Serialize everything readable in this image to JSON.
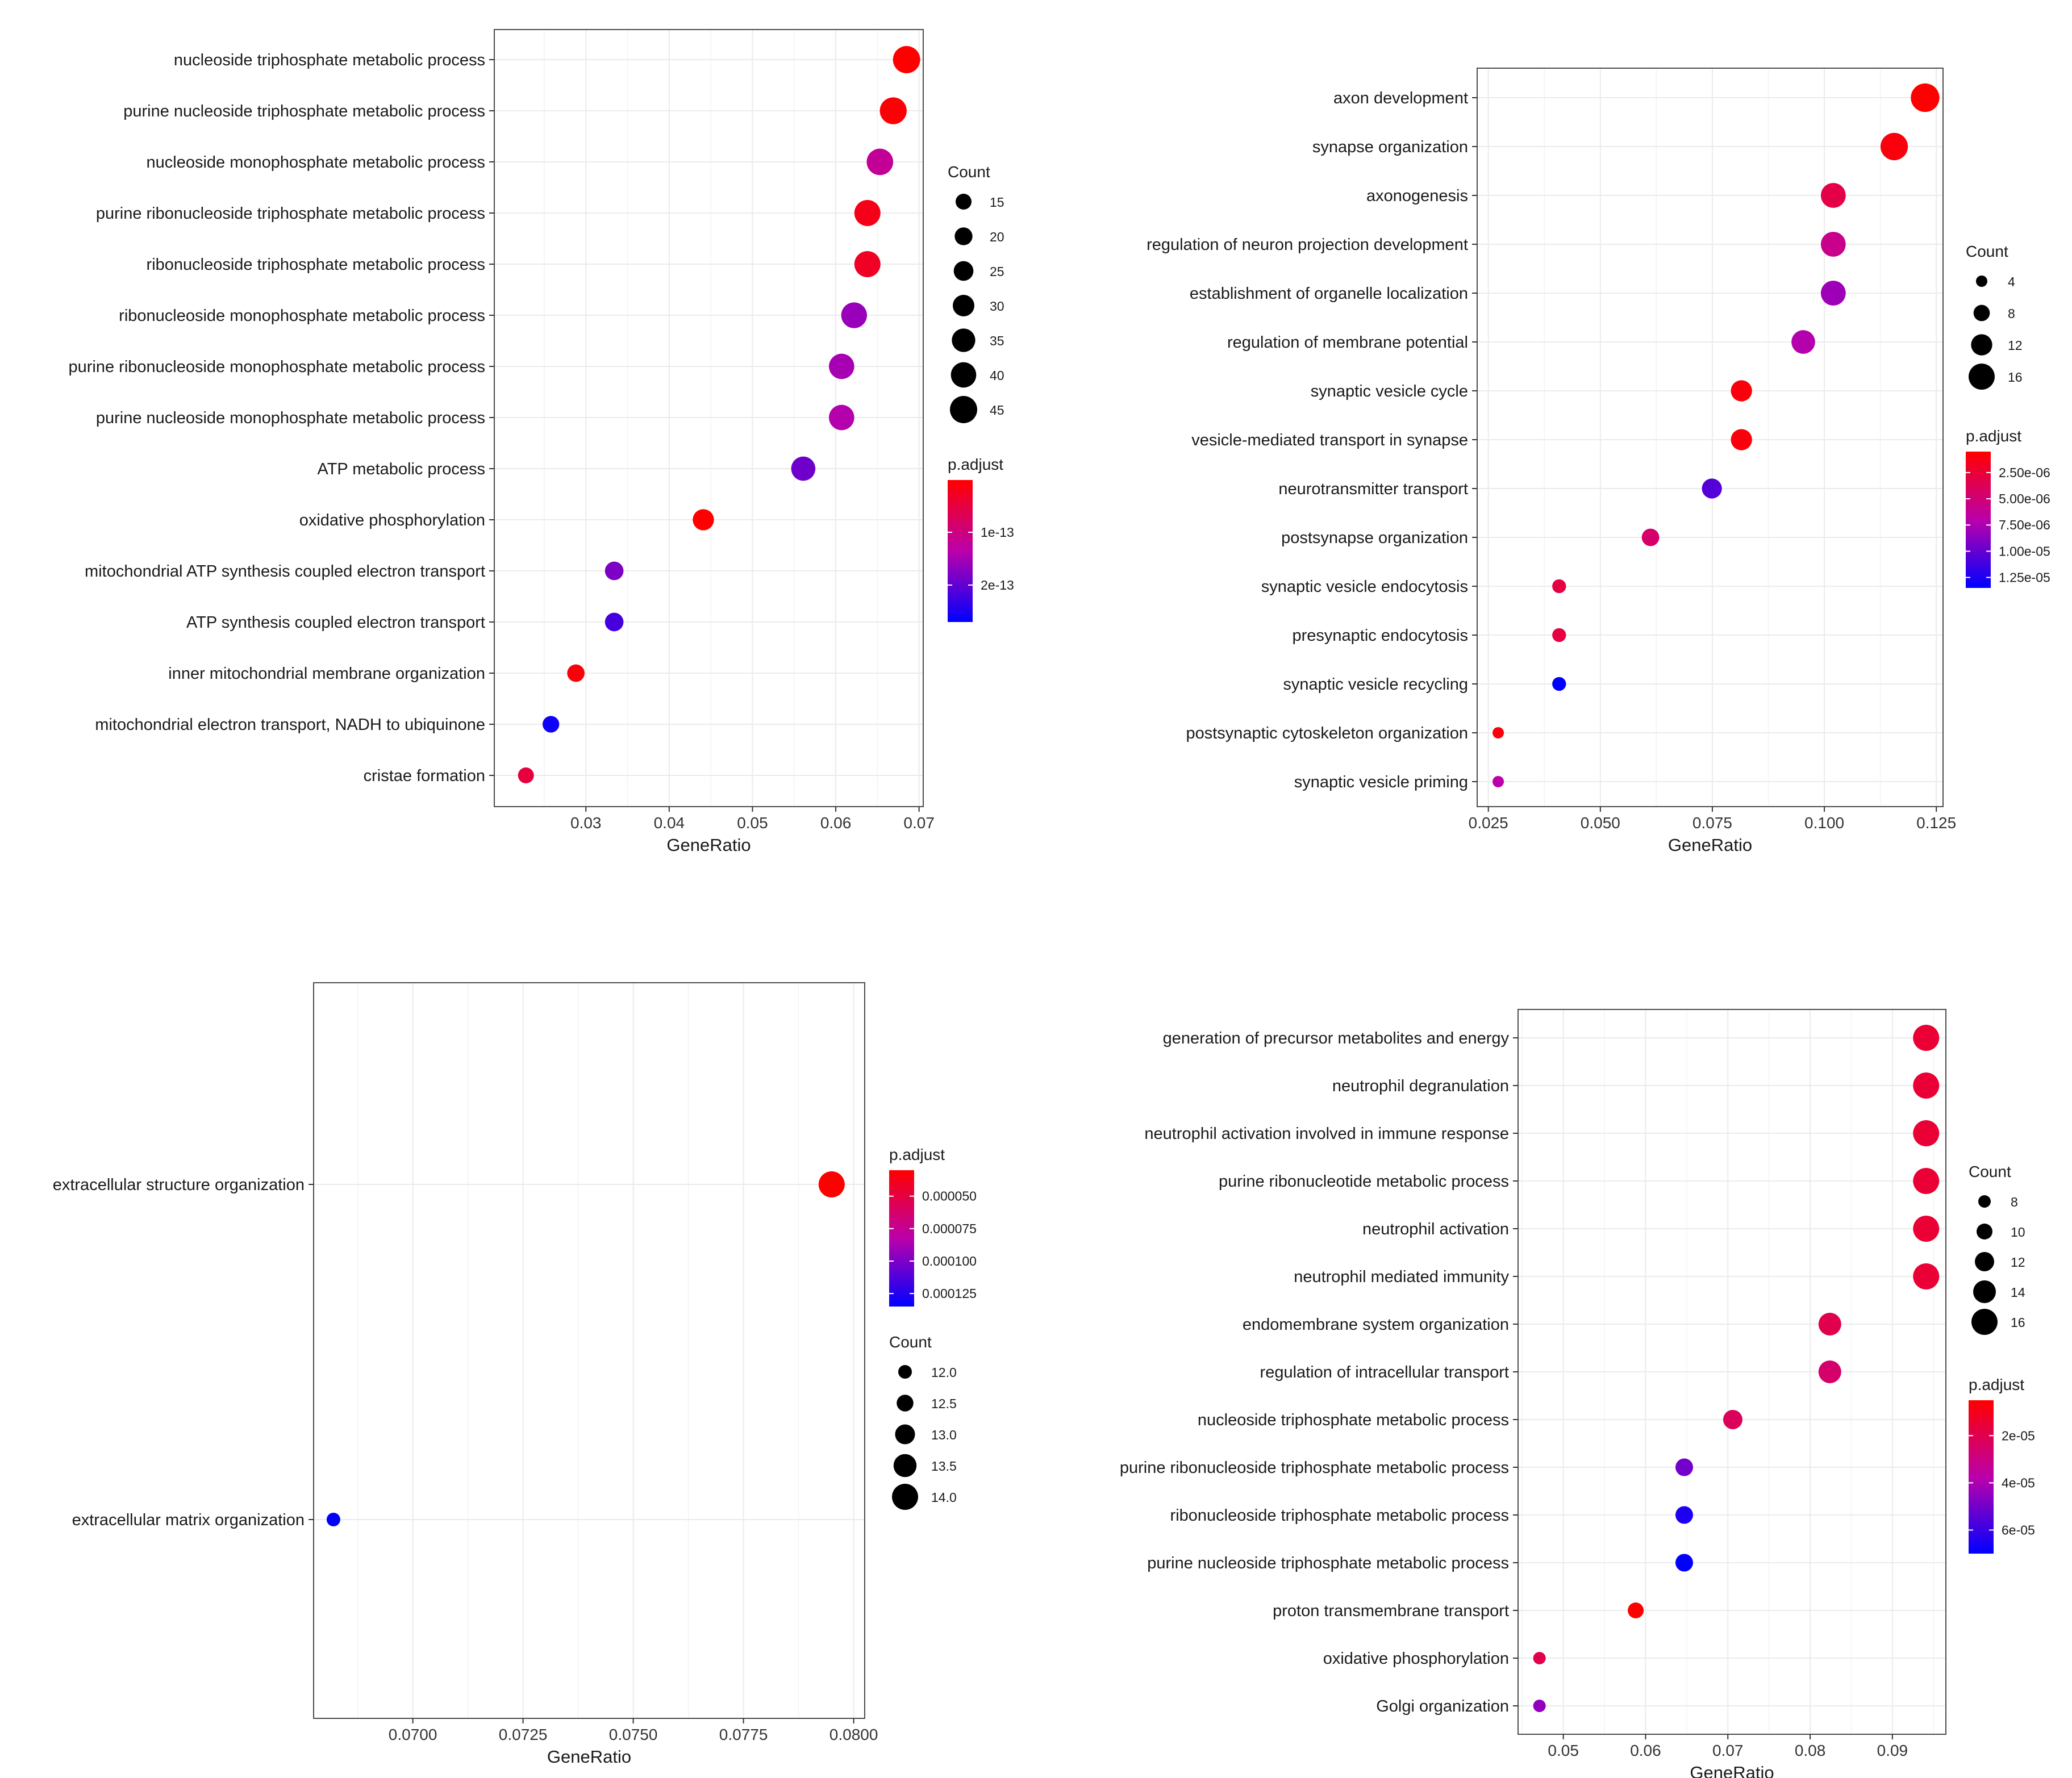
{
  "colors": {
    "low_padj": "#ff0000",
    "high_padj": "#0000ff",
    "grid": "#ebebeb",
    "frame": "#4d4d4d"
  },
  "chart_data": [
    {
      "type": "scatter",
      "xlabel": "GeneRatio",
      "xlim": [
        0.019,
        0.0705
      ],
      "xticks": [
        0.03,
        0.04,
        0.05,
        0.06,
        0.07
      ],
      "xtick_labels": [
        "0.03",
        "0.04",
        "0.05",
        "0.06",
        "0.07"
      ],
      "categories": [
        "nucleoside triphosphate metabolic process",
        "purine nucleoside triphosphate metabolic process",
        "nucleoside monophosphate metabolic process",
        "purine ribonucleoside triphosphate metabolic process",
        "ribonucleoside triphosphate metabolic process",
        "ribonucleoside monophosphate metabolic process",
        "purine ribonucleoside monophosphate metabolic process",
        "purine nucleoside monophosphate metabolic process",
        "ATP metabolic process",
        "oxidative phosphorylation",
        "mitochondrial ATP synthesis coupled electron transport",
        "ATP synthesis coupled electron transport",
        "inner mitochondrial membrane organization",
        "mitochondrial electron transport, NADH to ubiquinone",
        "cristae formation"
      ],
      "x": [
        0.0685,
        0.0669,
        0.0653,
        0.0638,
        0.0638,
        0.0622,
        0.0607,
        0.0607,
        0.0561,
        0.0441,
        0.0334,
        0.0334,
        0.0288,
        0.0258,
        0.0228
      ],
      "count": [
        45,
        44,
        43,
        42,
        42,
        41,
        40,
        40,
        37,
        29,
        22,
        22,
        19,
        17,
        15
      ],
      "p_adjust": [
        1e-15,
        5e-15,
        1.2e-13,
        2e-14,
        3e-14,
        1.6e-13,
        1.5e-13,
        1.4e-13,
        1.9e-13,
        1e-15,
        1.8e-13,
        2.2e-13,
        1e-14,
        2.6e-13,
        5e-14
      ],
      "size_legend": {
        "title": "Count",
        "values": [
          15,
          20,
          25,
          30,
          35,
          40,
          45
        ],
        "labels": [
          "15",
          "20",
          "25",
          "30",
          "35",
          "40",
          "45"
        ]
      },
      "color_legend": {
        "title": "p.adjust",
        "range": [
          1e-15,
          2.7e-13
        ],
        "ticks": [
          1e-13,
          2e-13
        ],
        "tick_labels": [
          "1e-13",
          "2e-13"
        ]
      },
      "legend_order": [
        "size",
        "color"
      ]
    },
    {
      "type": "scatter",
      "xlabel": "GeneRatio",
      "xlim": [
        0.0225,
        0.1265
      ],
      "xticks": [
        0.025,
        0.05,
        0.075,
        0.1,
        0.125
      ],
      "xtick_labels": [
        "0.025",
        "0.050",
        "0.075",
        "0.100",
        "0.125"
      ],
      "categories": [
        "axon development",
        "synapse organization",
        "axonogenesis",
        "regulation of neuron projection development",
        "establishment of organelle localization",
        "regulation of membrane potential",
        "synaptic vesicle cycle",
        "vesicle-mediated transport in synapse",
        "neurotransmitter transport",
        "postsynapse organization",
        "synaptic vesicle endocytosis",
        "presynaptic endocytosis",
        "synaptic vesicle recycling",
        "postsynaptic cytoskeleton organization",
        "synaptic vesicle priming"
      ],
      "x": [
        0.1225,
        0.1156,
        0.102,
        0.102,
        0.102,
        0.0953,
        0.0815,
        0.0815,
        0.0749,
        0.0612,
        0.0408,
        0.0408,
        0.0408,
        0.0272,
        0.0272
      ],
      "count": [
        18,
        17,
        15,
        15,
        15,
        14,
        12,
        12,
        11,
        9,
        6,
        6,
        6,
        4,
        4
      ],
      "p_adjust": [
        5e-07,
        1e-06,
        3.2e-06,
        5.8e-06,
        8e-06,
        7.2e-06,
        1e-06,
        1e-06,
        1.05e-05,
        4.5e-06,
        3e-06,
        3e-06,
        1.35e-05,
        1e-06,
        7e-06
      ],
      "size_legend": {
        "title": "Count",
        "values": [
          4,
          8,
          12,
          16
        ],
        "labels": [
          "4",
          "8",
          "12",
          "16"
        ]
      },
      "color_legend": {
        "title": "p.adjust",
        "range": [
          5e-07,
          1.35e-05
        ],
        "ticks": [
          2.5e-06,
          5e-06,
          7.5e-06,
          1e-05,
          1.25e-05
        ],
        "tick_labels": [
          "2.50e-06",
          "5.00e-06",
          "7.50e-06",
          "1.00e-05",
          "1.25e-05"
        ]
      },
      "legend_order": [
        "size",
        "color"
      ]
    },
    {
      "type": "scatter",
      "xlabel": "GeneRatio",
      "xlim": [
        0.06775,
        0.08025
      ],
      "xticks": [
        0.07,
        0.0725,
        0.075,
        0.0775,
        0.08
      ],
      "xtick_labels": [
        "0.0700",
        "0.0725",
        "0.0750",
        "0.0775",
        "0.0800"
      ],
      "categories": [
        "extracellular structure organization",
        "extracellular matrix organization"
      ],
      "x": [
        0.0795,
        0.0682
      ],
      "count": [
        14,
        12
      ],
      "p_adjust": [
        3e-05,
        0.000135
      ],
      "size_legend": {
        "title": "Count",
        "values": [
          12.0,
          12.5,
          13.0,
          13.5,
          14.0
        ],
        "labels": [
          "12.0",
          "12.5",
          "13.0",
          "13.5",
          "14.0"
        ]
      },
      "color_legend": {
        "title": "p.adjust",
        "range": [
          3e-05,
          0.000135
        ],
        "ticks": [
          5e-05,
          7.5e-05,
          0.0001,
          0.000125
        ],
        "tick_labels": [
          "0.000050",
          "0.000075",
          "0.000100",
          "0.000125"
        ]
      },
      "legend_order": [
        "color",
        "size"
      ]
    },
    {
      "type": "scatter",
      "xlabel": "GeneRatio",
      "xlim": [
        0.0445,
        0.0965
      ],
      "xticks": [
        0.05,
        0.06,
        0.07,
        0.08,
        0.09
      ],
      "xtick_labels": [
        "0.05",
        "0.06",
        "0.07",
        "0.08",
        "0.09"
      ],
      "categories": [
        "generation of precursor metabolites and energy",
        "neutrophil degranulation",
        "neutrophil activation involved in immune response",
        "purine ribonucleotide metabolic process",
        "neutrophil activation",
        "neutrophil mediated immunity",
        "endomembrane system organization",
        "regulation of intracellular transport",
        "nucleoside triphosphate metabolic process",
        "purine ribonucleoside triphosphate metabolic process",
        "ribonucleoside triphosphate metabolic process",
        "purine nucleoside triphosphate metabolic process",
        "proton transmembrane transport",
        "oxidative phosphorylation",
        "Golgi organization"
      ],
      "x": [
        0.0941,
        0.0941,
        0.0941,
        0.0941,
        0.0941,
        0.0941,
        0.0824,
        0.0824,
        0.0706,
        0.0647,
        0.0647,
        0.0647,
        0.0588,
        0.0471,
        0.0471
      ],
      "count": [
        16,
        16,
        16,
        16,
        16,
        16,
        14,
        14,
        12,
        11,
        11,
        11,
        10,
        8,
        8
      ],
      "p_adjust": [
        1.5e-05,
        1.5e-05,
        1.5e-05,
        1.5e-05,
        1.5e-05,
        1.5e-05,
        2e-05,
        2.5e-05,
        2.2e-05,
        5e-05,
        6.5e-05,
        7e-05,
        5e-06,
        2e-05,
        4.5e-05
      ],
      "size_legend": {
        "title": "Count",
        "values": [
          8,
          10,
          12,
          14,
          16
        ],
        "labels": [
          "8",
          "10",
          "12",
          "14",
          "16"
        ]
      },
      "color_legend": {
        "title": "p.adjust",
        "range": [
          5e-06,
          7e-05
        ],
        "ticks": [
          2e-05,
          4e-05,
          6e-05
        ],
        "tick_labels": [
          "2e-05",
          "4e-05",
          "6e-05"
        ]
      },
      "legend_order": [
        "size",
        "color"
      ]
    }
  ]
}
